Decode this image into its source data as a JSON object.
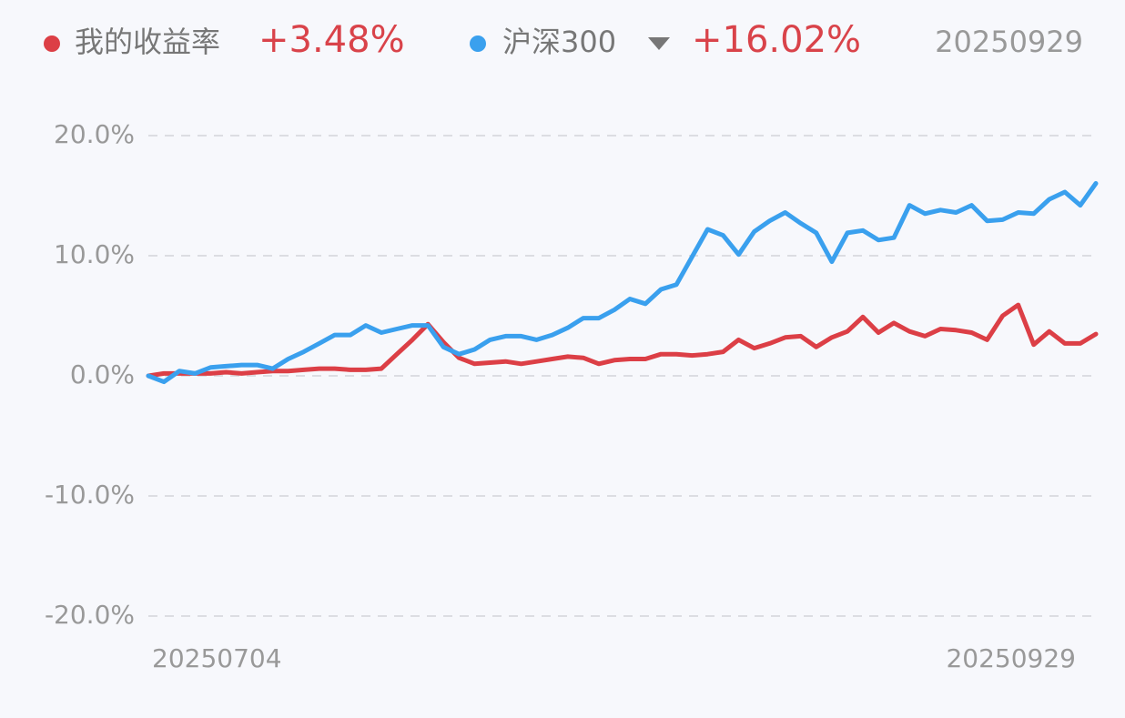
{
  "chart_data": {
    "type": "line",
    "categories": [
      "20250704",
      null,
      null,
      null,
      null,
      null,
      null,
      null,
      null,
      null,
      null,
      null,
      null,
      null,
      null,
      null,
      null,
      null,
      null,
      null,
      null,
      null,
      null,
      null,
      null,
      null,
      null,
      null,
      null,
      null,
      null,
      null,
      null,
      null,
      null,
      null,
      null,
      null,
      null,
      null,
      null,
      null,
      null,
      null,
      null,
      null,
      null,
      null,
      null,
      null,
      null,
      null,
      null,
      null,
      null,
      null,
      null,
      null,
      null,
      null,
      null,
      "20250929"
    ],
    "series": [
      {
        "name": "我的收益率",
        "color": "#dc3f46",
        "value_label": "+3.48%",
        "values": [
          0,
          0.2,
          0.2,
          0.2,
          0.2,
          0.3,
          0.2,
          0.3,
          0.4,
          0.4,
          0.5,
          0.6,
          0.6,
          0.5,
          0.5,
          0.6,
          1.8,
          3.0,
          4.3,
          2.8,
          1.5,
          1.0,
          1.1,
          1.2,
          1.0,
          1.2,
          1.4,
          1.6,
          1.5,
          1.0,
          1.3,
          1.4,
          1.4,
          1.8,
          1.8,
          1.7,
          1.8,
          2.0,
          3.0,
          2.3,
          2.7,
          3.2,
          3.3,
          2.4,
          3.2,
          3.7,
          4.9,
          3.6,
          4.4,
          3.7,
          3.3,
          3.9,
          3.8,
          3.6,
          3.0,
          5.0,
          5.9,
          2.6,
          3.7,
          2.7,
          2.7,
          3.48
        ]
      },
      {
        "name": "沪深300",
        "color": "#3aa0ee",
        "value_label": "+16.02%",
        "values": [
          0,
          -0.5,
          0.4,
          0.2,
          0.7,
          0.8,
          0.9,
          0.9,
          0.6,
          1.4,
          2.0,
          2.7,
          3.4,
          3.4,
          4.2,
          3.6,
          3.9,
          4.2,
          4.2,
          2.4,
          1.8,
          2.2,
          3.0,
          3.3,
          3.3,
          3.0,
          3.4,
          4.0,
          4.8,
          4.8,
          5.5,
          6.4,
          6.0,
          7.2,
          7.6,
          9.9,
          12.2,
          11.7,
          10.1,
          12.0,
          12.9,
          13.6,
          12.7,
          11.9,
          9.5,
          11.9,
          12.1,
          11.3,
          11.5,
          14.2,
          13.5,
          13.8,
          13.6,
          14.2,
          12.9,
          13.0,
          13.6,
          13.5,
          14.7,
          15.3,
          14.2,
          16.02
        ]
      }
    ],
    "ylim": [
      -20,
      20
    ],
    "yticks": [
      {
        "value": 20,
        "label": "20.0%"
      },
      {
        "value": 10,
        "label": "10.0%"
      },
      {
        "value": 0,
        "label": "0.0%"
      },
      {
        "value": -10,
        "label": "-10.0%"
      },
      {
        "value": -20,
        "label": "-20.0%"
      }
    ],
    "grid": true
  }
}
